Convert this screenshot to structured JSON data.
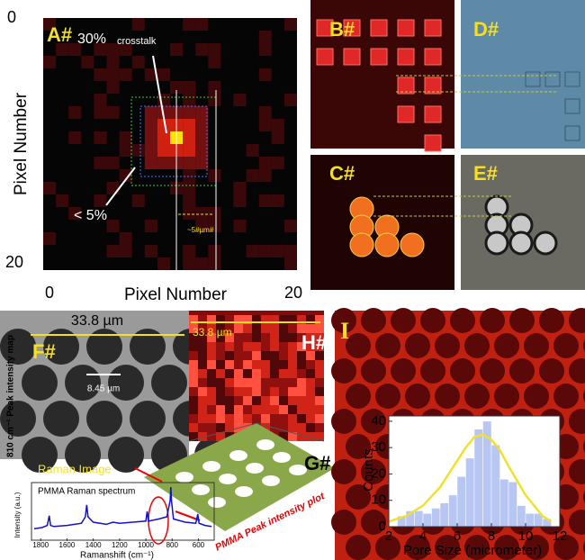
{
  "panels": {
    "A": {
      "label": "A#",
      "crosstalk_value": "30%",
      "crosstalk_text": "crosstalk",
      "low": "< 5%",
      "scale": "~5#µm#",
      "x_label": "Pixel Number",
      "y_label": "Pixel Number",
      "xticks": [
        0,
        20
      ],
      "yticks": [
        0,
        20
      ]
    },
    "B": {
      "label": "B#"
    },
    "C": {
      "label": "C#"
    },
    "D": {
      "label": "D#"
    },
    "E": {
      "label": "E#"
    },
    "F": {
      "label": "F#",
      "width": "33.8 µm",
      "scale": "8.45 µm",
      "caption": "Raman Image",
      "y_label": "810 cm⁻¹ Peak intensity map"
    },
    "G": {
      "label": "G#",
      "caption": "PMMA Peak intensity plot"
    },
    "H": {
      "label": "H#",
      "width": "33.8 µm"
    },
    "I": {
      "label": "I"
    }
  },
  "chart_data": [
    {
      "type": "histogram",
      "x_label": "Pore Size (micrometer)",
      "y_label": "Counts",
      "bins": [
        2.5,
        3,
        3.5,
        4,
        4.5,
        5,
        5.5,
        6,
        6.5,
        7,
        7.5,
        8,
        8.5,
        9,
        9.5,
        10,
        10.5,
        11,
        11.5
      ],
      "values": [
        4,
        6,
        6,
        5,
        7,
        9,
        12,
        19,
        26,
        37,
        40,
        31,
        18,
        17,
        8,
        5,
        5,
        3
      ],
      "color": "#b8c6f4",
      "fit": {
        "color": "#f0e030",
        "x": [
          2,
          3,
          4,
          5,
          6,
          6.5,
          7,
          7.5,
          8,
          8.5,
          9,
          10,
          11,
          11.5
        ],
        "values": [
          2,
          4,
          8,
          15,
          25,
          30,
          34,
          35,
          33,
          29,
          23,
          12,
          4,
          2
        ]
      },
      "xlim": [
        2,
        12
      ],
      "ylim": [
        0,
        42
      ],
      "xticks": [
        2,
        4,
        6,
        8,
        10,
        12
      ],
      "yticks": [
        0,
        10,
        20,
        30,
        40
      ]
    },
    {
      "type": "line",
      "title": "PMMA Raman spectrum",
      "x_label": "Ramanshift (cm⁻¹)",
      "y_label": "Intensity (a.u.)",
      "x": [
        1850,
        1790,
        1750,
        1735,
        1725,
        1700,
        1600,
        1490,
        1460,
        1450,
        1440,
        1400,
        1300,
        1250,
        1200,
        1100,
        1000,
        990,
        980,
        900,
        840,
        815,
        810,
        805,
        790,
        700,
        620,
        605,
        595,
        550,
        500
      ],
      "values": [
        0.18,
        0.2,
        0.24,
        0.42,
        0.24,
        0.22,
        0.24,
        0.28,
        0.4,
        0.62,
        0.4,
        0.3,
        0.26,
        0.3,
        0.28,
        0.3,
        0.32,
        0.5,
        0.32,
        0.36,
        0.4,
        0.7,
        0.95,
        0.7,
        0.36,
        0.3,
        0.28,
        0.45,
        0.28,
        0.24,
        0.22
      ],
      "color": "#1010cc",
      "xlim": [
        1870,
        480
      ],
      "ylim": [
        0,
        1
      ],
      "xticks": [
        1800,
        1600,
        1400,
        1200,
        1000,
        800,
        600
      ]
    }
  ]
}
